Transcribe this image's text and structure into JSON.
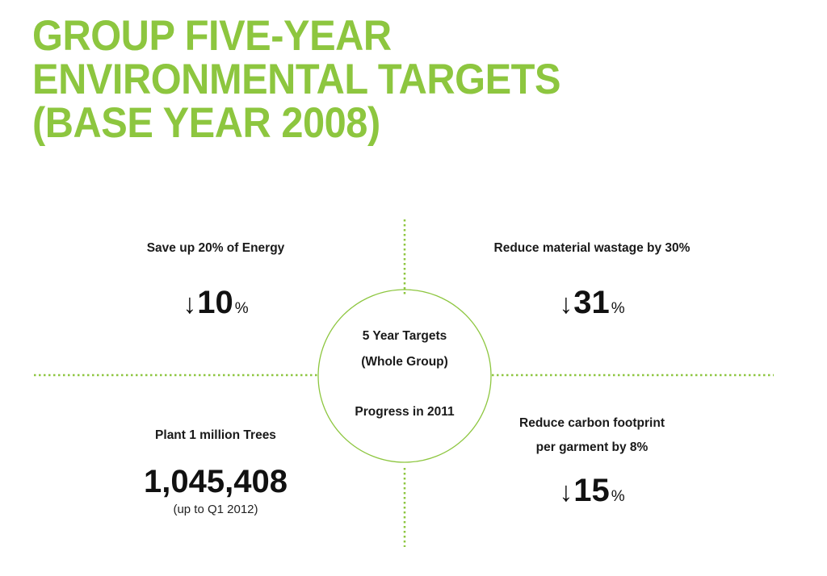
{
  "title": {
    "line1": "GROUP FIVE-YEAR",
    "line2": "ENVIRONMENTAL TARGETS",
    "line3": "(BASE YEAR 2008)"
  },
  "center": {
    "line1": "5 Year Targets",
    "line2": "(Whole Group)",
    "line3": "Progress in 2011"
  },
  "energy": {
    "label": "Save up 20% of Energy",
    "arrow": "↓",
    "value": "10",
    "unit": "%"
  },
  "material": {
    "label": "Reduce material wastage by 30%",
    "arrow": "↓",
    "value": "31",
    "unit": "%"
  },
  "trees": {
    "label": "Plant 1 million Trees",
    "value": "1,045,408",
    "note": "(up to Q1 2012)"
  },
  "carbon": {
    "label_line1": "Reduce carbon footprint",
    "label_line2": "per garment by 8%",
    "arrow": "↓",
    "value": "15",
    "unit": "%"
  },
  "colors": {
    "accent": "#8dc63f",
    "text": "#1a1a1a"
  }
}
